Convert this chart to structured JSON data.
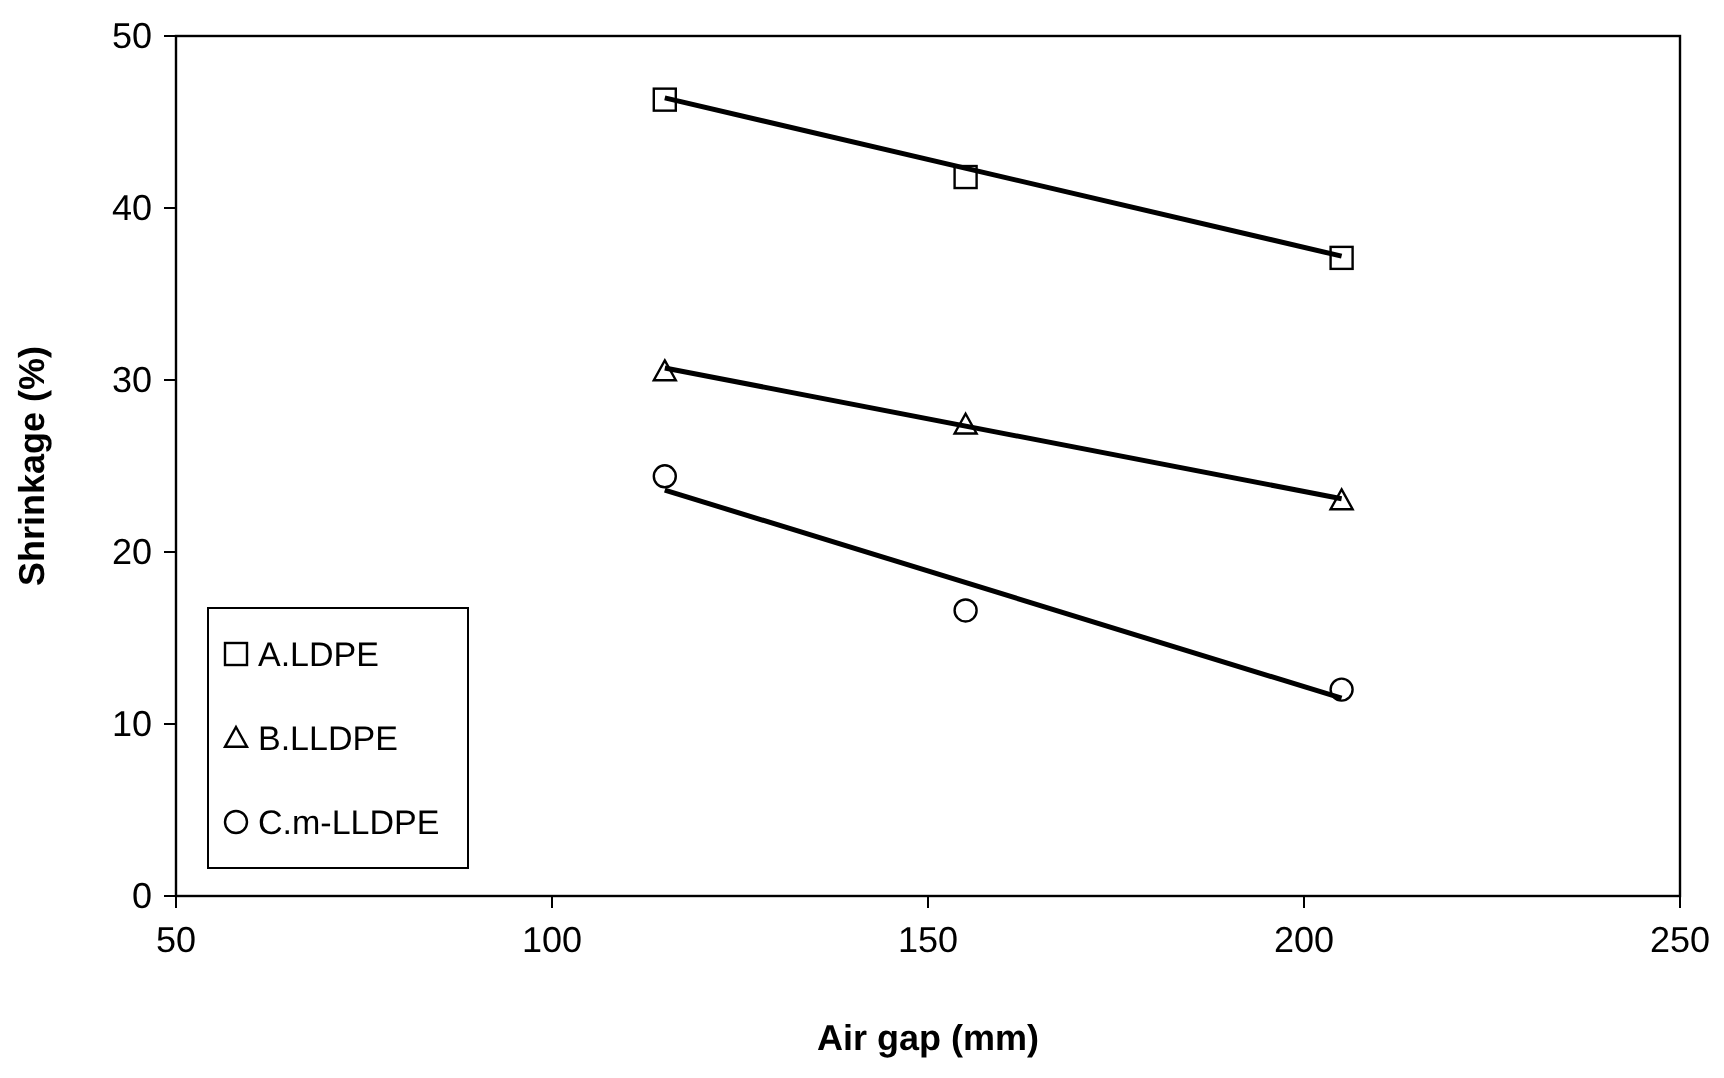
{
  "chart_data": {
    "type": "scatter",
    "xlabel": "Air gap (mm)",
    "ylabel": "Shrinkage (%)",
    "xlim": [
      50,
      250
    ],
    "xticks": [
      50,
      100,
      150,
      200,
      250
    ],
    "ylim": [
      0,
      50
    ],
    "yticks": [
      0,
      10,
      20,
      30,
      40,
      50
    ],
    "grid": false,
    "legend": "bottom left",
    "series": [
      {
        "name": "A.LDPE",
        "marker": "square",
        "color": "#000000",
        "x": [
          115,
          155,
          205
        ],
        "values": [
          46.3,
          41.8,
          37.1
        ]
      },
      {
        "name": "B.LLDPE",
        "marker": "triangle",
        "color": "#000000",
        "x": [
          115,
          155,
          205
        ],
        "values": [
          30.5,
          27.4,
          23.0
        ]
      },
      {
        "name": "C.m-LLDPE",
        "marker": "circle",
        "color": "#000000",
        "x": [
          115,
          155,
          205
        ],
        "values": [
          24.4,
          16.6,
          12.0
        ]
      },
      {
        "type": "line",
        "marker": "none",
        "color": "#000000",
        "x": [
          115,
          205
        ],
        "values": [
          46.4,
          37.2
        ]
      },
      {
        "type": "line",
        "marker": "none",
        "color": "#000000",
        "x": [
          115,
          205
        ],
        "values": [
          30.7,
          23.1
        ]
      },
      {
        "type": "line",
        "marker": "none",
        "color": "#000000",
        "x": [
          115,
          205
        ],
        "values": [
          23.6,
          11.5
        ]
      }
    ]
  }
}
